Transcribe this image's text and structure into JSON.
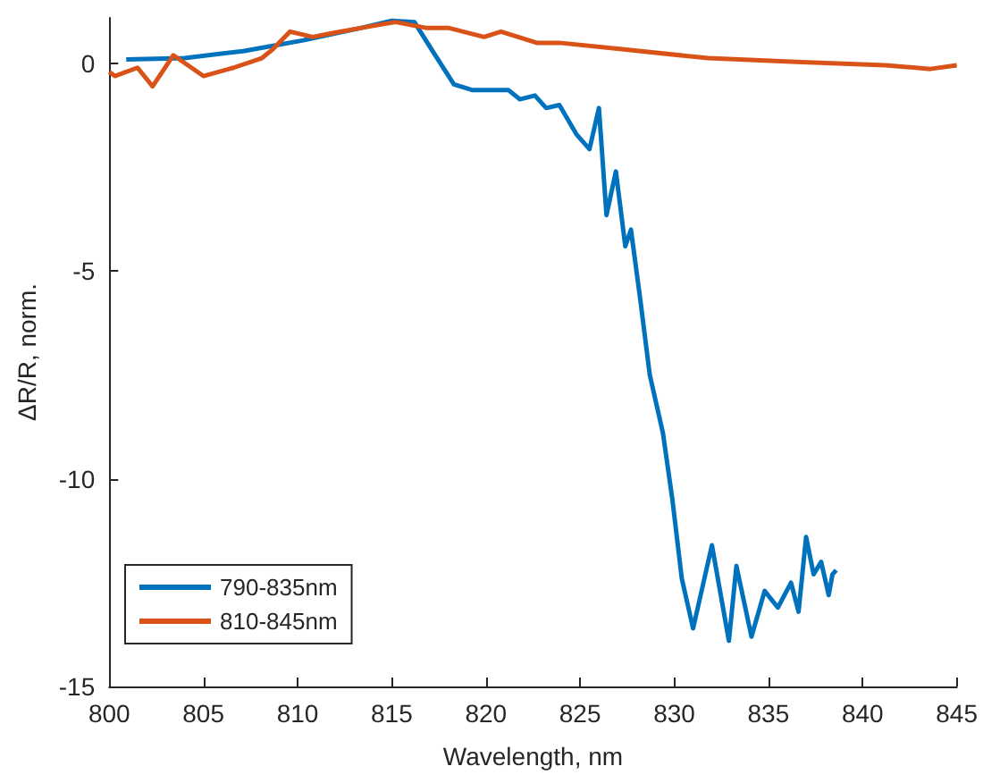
{
  "chart_data": {
    "type": "line",
    "xlabel": "Wavelength, nm",
    "ylabel": "ΔR/R, norm.",
    "xlim": [
      800,
      845
    ],
    "xticks": [
      800,
      805,
      810,
      815,
      820,
      825,
      830,
      835,
      840,
      845
    ],
    "ylim": [
      -15,
      1.1
    ],
    "yticks": [
      -15,
      -10,
      -5,
      0
    ],
    "grid": false,
    "legend": "bottom left",
    "marker": "none",
    "line_style": "solid",
    "series": [
      {
        "name": "790-835nm",
        "color": "#0072bd",
        "x": [
          800.9,
          804,
          807.1,
          810.3,
          813.4,
          815,
          816.2,
          817.1,
          818.3,
          819.3,
          821.2,
          821.8,
          822.6,
          823.2,
          823.9,
          824.8,
          825.5,
          826.0,
          826.4,
          826.9,
          827.4,
          827.7,
          828.2,
          828.7,
          829.4,
          829.9,
          830.4,
          831.0,
          832.0,
          832.9,
          833.3,
          834.1,
          834.8,
          835.5,
          836.2,
          836.6,
          837.0,
          837.4,
          837.8,
          838.2,
          838.4,
          838.6
        ],
        "values": [
          0.1,
          0.13,
          0.3,
          0.56,
          0.86,
          1.03,
          1.0,
          0.35,
          -0.5,
          -0.64,
          -0.64,
          -0.86,
          -0.77,
          -1.07,
          -1.0,
          -1.7,
          -2.06,
          -1.07,
          -3.65,
          -2.6,
          -4.4,
          -4.0,
          -5.7,
          -7.5,
          -8.9,
          -10.5,
          -12.4,
          -13.6,
          -11.6,
          -13.9,
          -12.1,
          -13.8,
          -12.7,
          -13.1,
          -12.5,
          -13.2,
          -11.4,
          -12.3,
          -12.0,
          -12.8,
          -12.3,
          -12.2
        ]
      },
      {
        "name": "810-845nm",
        "color": "#d95319",
        "x": [
          800,
          800.3,
          801.5,
          802.3,
          803.4,
          805.0,
          806.6,
          808.1,
          808.7,
          809.6,
          810.8,
          811.8,
          813.4,
          815.2,
          816.8,
          818.0,
          819.9,
          820.8,
          822.7,
          823.9,
          827.1,
          831.8,
          836.5,
          841.2,
          843.6,
          845
        ],
        "values": [
          -0.2,
          -0.3,
          -0.1,
          -0.55,
          0.2,
          -0.3,
          -0.1,
          0.13,
          0.35,
          0.77,
          0.64,
          0.73,
          0.86,
          1.0,
          0.86,
          0.86,
          0.64,
          0.77,
          0.5,
          0.5,
          0.35,
          0.13,
          0.04,
          -0.04,
          -0.13,
          -0.04
        ]
      }
    ]
  }
}
